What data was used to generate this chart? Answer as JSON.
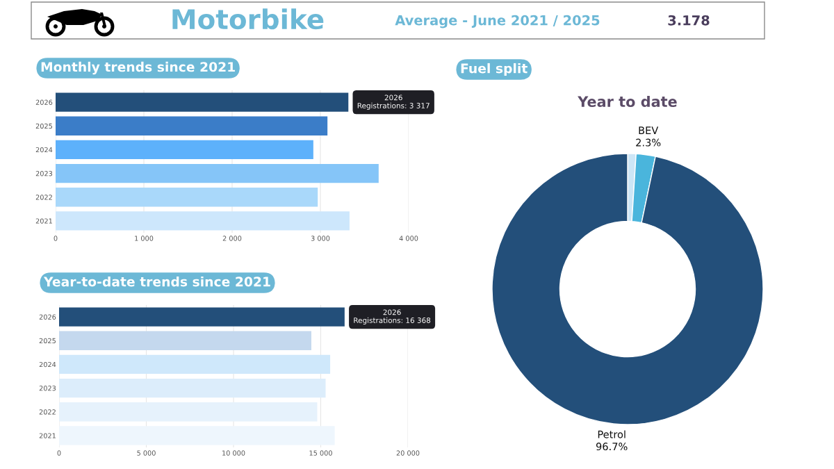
{
  "chart_data": [
    {
      "type": "other",
      "title": "Motorbike",
      "annotations": [
        "Average - June 2021 / 2025",
        "3.178"
      ]
    },
    {
      "type": "bar",
      "orientation": "horizontal",
      "title": "Monthly trends since 2021",
      "categories": [
        "2026",
        "2025",
        "2024",
        "2023",
        "2022",
        "2021"
      ],
      "values": [
        3317,
        3080,
        2920,
        3660,
        2970,
        3330
      ],
      "colors": [
        "#234f7a",
        "#3b7dc8",
        "#5db1fb",
        "#85c5f8",
        "#a9d8fa",
        "#cde7fc"
      ],
      "xlim": [
        0,
        4000
      ],
      "xticks": [
        0,
        {
          "value": 1000,
          "label": "1 000"
        },
        {
          "value": 2000,
          "label": "2 000"
        },
        {
          "value": 3000,
          "label": "3 000"
        },
        {
          "value": 4000,
          "label": "4 000"
        }
      ],
      "grid": "x",
      "annotations": [
        {
          "text": "2026\nRegistrations: 3 317",
          "x": 3317,
          "y": "2026"
        }
      ]
    },
    {
      "type": "bar",
      "orientation": "horizontal",
      "title": "Year-to-date trends since 2021",
      "categories": [
        "2026",
        "2025",
        "2024",
        "2023",
        "2022",
        "2021"
      ],
      "values": [
        16368,
        14460,
        15540,
        15280,
        14800,
        15800
      ],
      "colors": [
        "#234f7a",
        "#c4d8ee",
        "#cfe8fb",
        "#dcedfb",
        "#e6f2fc",
        "#eef6fd"
      ],
      "xlim": [
        0,
        20000
      ],
      "xticks": [
        0,
        {
          "value": 5000,
          "label": "5 000"
        },
        {
          "value": 10000,
          "label": "10 000"
        },
        {
          "value": 15000,
          "label": "15 000"
        },
        {
          "value": 20000,
          "label": "20 000"
        }
      ],
      "grid": "x",
      "annotations": [
        {
          "text": "2026\nRegistrations: 16 368",
          "x": 16368,
          "y": "2026"
        }
      ]
    },
    {
      "type": "donut",
      "title": "Fuel split",
      "subtitle": "Year to date",
      "categories": [
        null,
        "BEV",
        "Petrol"
      ],
      "values": [
        1.0,
        2.3,
        96.7
      ],
      "colors": [
        "#cde6f6",
        "#4ab5dc",
        "#234f7a"
      ],
      "value_labels": [
        null,
        "2.3%",
        "96.7%"
      ]
    }
  ]
}
